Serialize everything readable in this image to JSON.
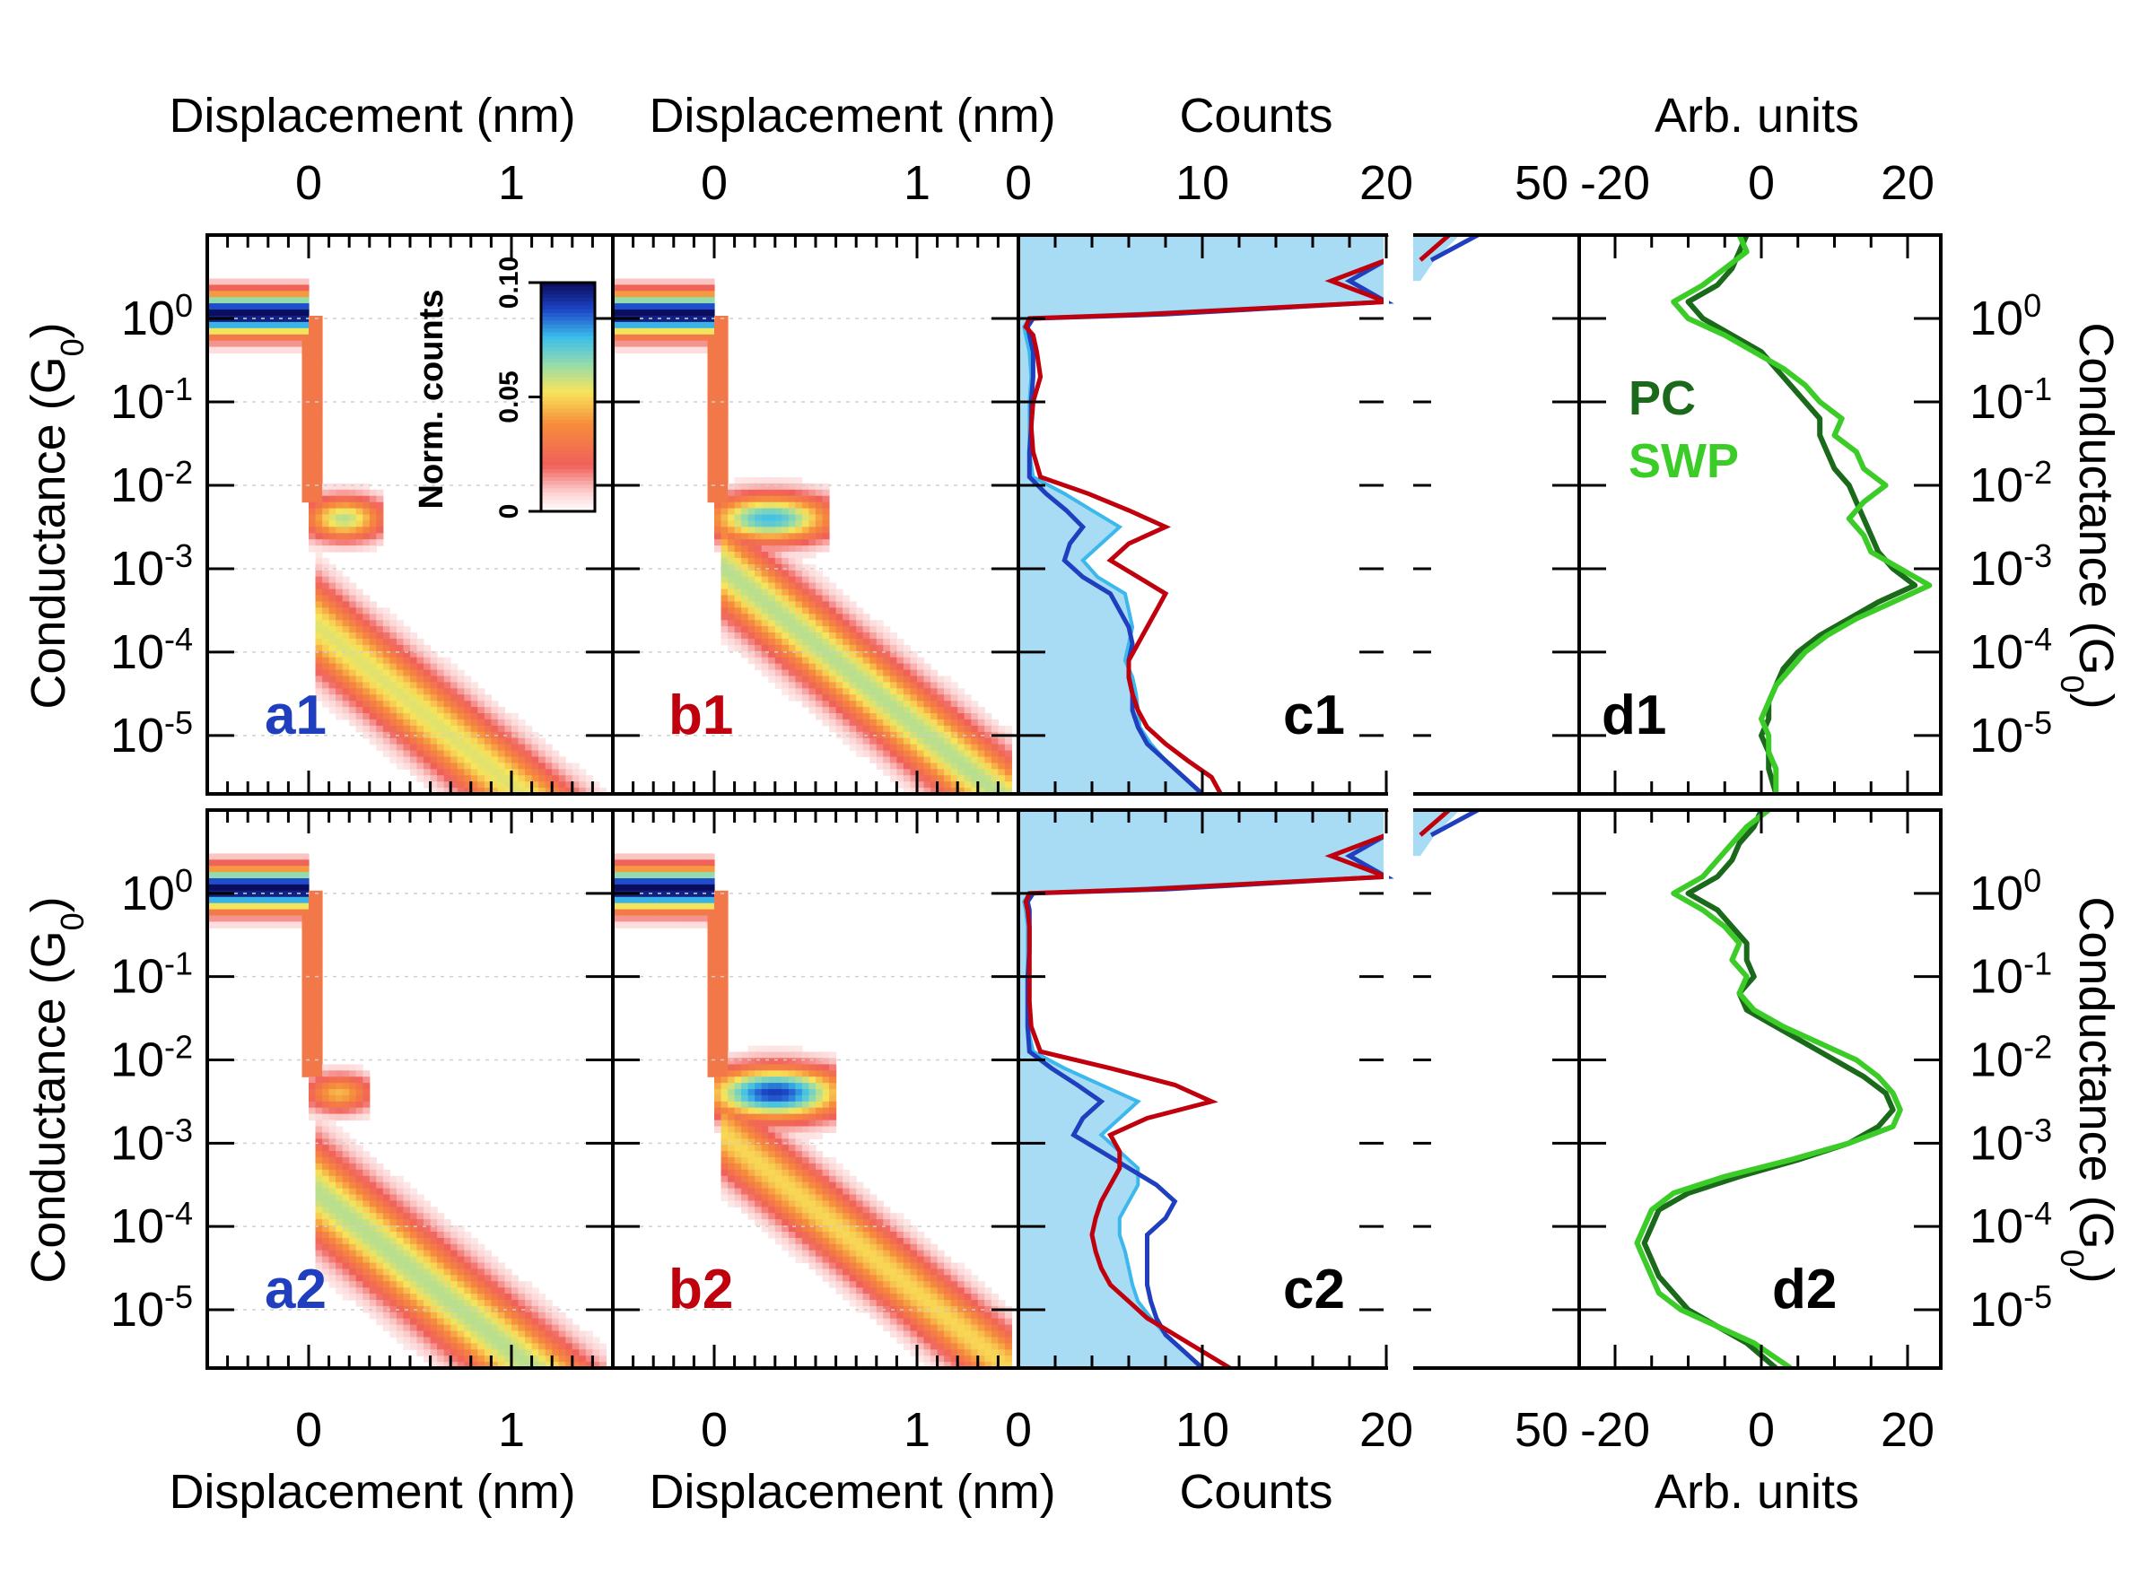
{
  "chart_data": {
    "type": "heatmap",
    "labels": {
      "displacement": "Displacement (nm)",
      "counts": "Counts",
      "arb": "Arb. units",
      "conductance": "Conductance (G",
      "conductance_sub": "0",
      "conductance_close": ")",
      "colorbar": "Norm. counts"
    },
    "ticks": {
      "displacement": [
        "0",
        "1"
      ],
      "counts": [
        "0",
        "10",
        "20",
        "50"
      ],
      "arb": [
        "-20",
        "0",
        "20"
      ],
      "conductance_base": "10",
      "conductance_exp": [
        "0",
        "-1",
        "-2",
        "-3",
        "-4",
        "-5"
      ],
      "colorbar": [
        "0",
        "0.05",
        "0.10"
      ]
    },
    "axes": {
      "displacement_range": [
        -0.5,
        1.5
      ],
      "log_conductance_range": [
        -5.7,
        1.0
      ],
      "counts_range": [
        0,
        20
      ],
      "counts_break_range": [
        20,
        50
      ],
      "arb_range": [
        -20,
        20
      ],
      "colorbar_range": [
        0,
        0.1
      ],
      "log_scale": "conductance",
      "grid": "dotted horizontal lines at decades"
    },
    "panel_labels": {
      "a1": "a1",
      "b1": "b1",
      "c1": "c1",
      "d1": "d1",
      "a2": "a2",
      "b2": "b2",
      "c2": "c2",
      "d2": "d2"
    },
    "legend": {
      "pc": "PC",
      "swp": "SWP",
      "placement": "top-left of panel d1"
    },
    "colors": {
      "panel_label_a": "#1f3fbf",
      "panel_label_b": "#c0000c",
      "fill": "#a8dcf4",
      "line_blue": "#1f3fbf",
      "line_red": "#c0000c",
      "line_light": "#3cb8ec",
      "pc": "#1b6a1b",
      "swp": "#3ccc28"
    },
    "heatmaps": {
      "a1": {
        "features": [
          {
            "dmin": -0.5,
            "dmax": 0.0,
            "g": 0.05,
            "w": 0.18,
            "val": 0.1
          },
          {
            "dmin": 0.0,
            "dmax": 0.35,
            "g": -2.4,
            "w": 0.18,
            "val": 0.06
          },
          {
            "dmin": 0.05,
            "dmax": 1.45,
            "g": -3.7,
            "slope": -2.0,
            "w": 0.38,
            "val": 0.055
          }
        ]
      },
      "b1": {
        "features": [
          {
            "dmin": -0.5,
            "dmax": 0.0,
            "g": 0.05,
            "w": 0.18,
            "val": 0.1
          },
          {
            "dmin": 0.0,
            "dmax": 0.55,
            "g": -2.4,
            "w": 0.2,
            "val": 0.075
          },
          {
            "dmin": 0.05,
            "dmax": 1.45,
            "g": -3.0,
            "slope": -2.0,
            "w": 0.38,
            "val": 0.06
          }
        ]
      },
      "a2": {
        "features": [
          {
            "dmin": -0.5,
            "dmax": 0.0,
            "g": 0.05,
            "w": 0.18,
            "val": 0.1
          },
          {
            "dmin": 0.0,
            "dmax": 0.3,
            "g": -2.4,
            "w": 0.16,
            "val": 0.045
          },
          {
            "dmin": 0.05,
            "dmax": 1.45,
            "g": -3.6,
            "slope": -2.0,
            "w": 0.42,
            "val": 0.06
          }
        ]
      },
      "b2": {
        "features": [
          {
            "dmin": -0.5,
            "dmax": 0.0,
            "g": 0.05,
            "w": 0.18,
            "val": 0.1
          },
          {
            "dmin": 0.0,
            "dmax": 0.6,
            "g": -2.4,
            "w": 0.22,
            "val": 0.09
          },
          {
            "dmin": 0.05,
            "dmax": 1.45,
            "g": -2.9,
            "slope": -2.0,
            "w": 0.34,
            "val": 0.05
          }
        ]
      }
    },
    "counts_histograms": {
      "logG": [
        1.0,
        0.7,
        0.45,
        0.2,
        0.05,
        0.0,
        -0.1,
        -0.2,
        -0.4,
        -0.7,
        -1.0,
        -1.3,
        -1.6,
        -1.9,
        -2.1,
        -2.3,
        -2.5,
        -2.7,
        -2.9,
        -3.1,
        -3.3,
        -3.5,
        -3.7,
        -3.9,
        -4.1,
        -4.3,
        -4.5,
        -4.7,
        -4.9,
        -5.1,
        -5.3,
        -5.5,
        -5.7
      ],
      "c1": {
        "fill": [
          33,
          26,
          22,
          23,
          6,
          0.6,
          0.3,
          0.4,
          0.6,
          0.7,
          0.6,
          0.6,
          0.6,
          0.8,
          2.5,
          4.0,
          5.5,
          4.5,
          3.5,
          4.3,
          5.8,
          6.0,
          6.2,
          6.0,
          5.8,
          6.2,
          6.4,
          6.5,
          6.6,
          7.2,
          8.0,
          9.0,
          10.0
        ],
        "blue": [
          38,
          25,
          18,
          26,
          8,
          0.8,
          0.5,
          0.6,
          0.8,
          0.8,
          0.7,
          0.7,
          0.6,
          0.6,
          1.5,
          2.6,
          3.5,
          2.8,
          2.5,
          3.5,
          5.0,
          5.5,
          6.0,
          6.2,
          6.0,
          6.0,
          6.2,
          6.2,
          6.5,
          7.0,
          8.0,
          9.0,
          10.0
        ],
        "red": [
          30,
          22,
          17,
          20,
          7,
          0.6,
          0.4,
          0.8,
          1.0,
          1.2,
          0.8,
          0.7,
          0.8,
          1.2,
          3.8,
          6.0,
          8.0,
          6.0,
          5.0,
          6.5,
          8.0,
          7.5,
          7.0,
          6.5,
          6.0,
          6.0,
          6.2,
          6.5,
          7.0,
          8.0,
          9.2,
          10.5,
          11.0
        ]
      },
      "c2": {
        "fill": [
          33,
          26,
          22,
          23,
          6,
          0.6,
          0.3,
          0.4,
          0.5,
          0.5,
          0.5,
          0.5,
          0.5,
          0.8,
          2.5,
          4.5,
          6.5,
          5.5,
          4.5,
          5.5,
          6.5,
          6.5,
          6.0,
          5.5,
          5.5,
          5.8,
          6.0,
          6.2,
          6.5,
          7.2,
          8.0,
          9.0,
          10.0
        ],
        "blue": [
          38,
          25,
          18,
          26,
          8,
          0.8,
          0.5,
          0.6,
          0.6,
          0.6,
          0.5,
          0.5,
          0.5,
          0.6,
          1.8,
          3.2,
          4.5,
          3.5,
          3.0,
          4.5,
          6.0,
          7.5,
          8.5,
          8.0,
          7.0,
          7.0,
          7.0,
          7.0,
          7.2,
          7.5,
          8.0,
          9.0,
          10.0
        ],
        "red": [
          30,
          22,
          17,
          20,
          7,
          0.6,
          0.4,
          0.5,
          0.6,
          0.6,
          0.6,
          0.6,
          0.7,
          1.2,
          5.0,
          8.5,
          10.5,
          7.0,
          5.0,
          5.5,
          5.5,
          5.0,
          4.5,
          4.2,
          4.0,
          4.2,
          4.5,
          5.0,
          6.0,
          7.0,
          8.5,
          10.0,
          11.5
        ]
      }
    },
    "difference_curves": {
      "logG": [
        1.0,
        0.8,
        0.6,
        0.4,
        0.2,
        0.0,
        -0.2,
        -0.4,
        -0.6,
        -0.8,
        -1.0,
        -1.2,
        -1.4,
        -1.6,
        -1.8,
        -2.0,
        -2.2,
        -2.4,
        -2.6,
        -2.8,
        -3.0,
        -3.2,
        -3.4,
        -3.6,
        -3.8,
        -4.0,
        -4.2,
        -4.4,
        -4.6,
        -4.8,
        -5.0,
        -5.2,
        -5.4,
        -5.7
      ],
      "d1": {
        "pc": [
          -2,
          -3,
          -4,
          -6,
          -10,
          -8,
          -4,
          0,
          2,
          4,
          6,
          8,
          8,
          9,
          10,
          12,
          13,
          14,
          15,
          16,
          18,
          21,
          16,
          12,
          8,
          5,
          3,
          2,
          1,
          1,
          0,
          1,
          1,
          2
        ],
        "swp": [
          -3,
          -2,
          -5,
          -8,
          -12,
          -10,
          -5,
          -1,
          3,
          6,
          8,
          11,
          10,
          13,
          14,
          17,
          14,
          12,
          14,
          15,
          19,
          23,
          18,
          13,
          9,
          6,
          4,
          2,
          1,
          0,
          1,
          1,
          2,
          2
        ]
      },
      "d2": {
        "pc": [
          0,
          -1,
          -3,
          -4,
          -6,
          -10,
          -6,
          -4,
          -2,
          -2,
          -1,
          -3,
          -2,
          2,
          6,
          10,
          14,
          17,
          18,
          16,
          12,
          5,
          -3,
          -10,
          -14,
          -15,
          -16,
          -15,
          -14,
          -12,
          -10,
          -6,
          -2,
          2
        ],
        "swp": [
          1,
          -2,
          -4,
          -6,
          -8,
          -12,
          -8,
          -5,
          -3,
          -4,
          -2,
          -3,
          -1,
          3,
          8,
          13,
          16,
          18,
          19,
          18,
          12,
          4,
          -5,
          -12,
          -15,
          -16,
          -17,
          -16,
          -15,
          -14,
          -11,
          -6,
          -1,
          4
        ]
      }
    }
  }
}
